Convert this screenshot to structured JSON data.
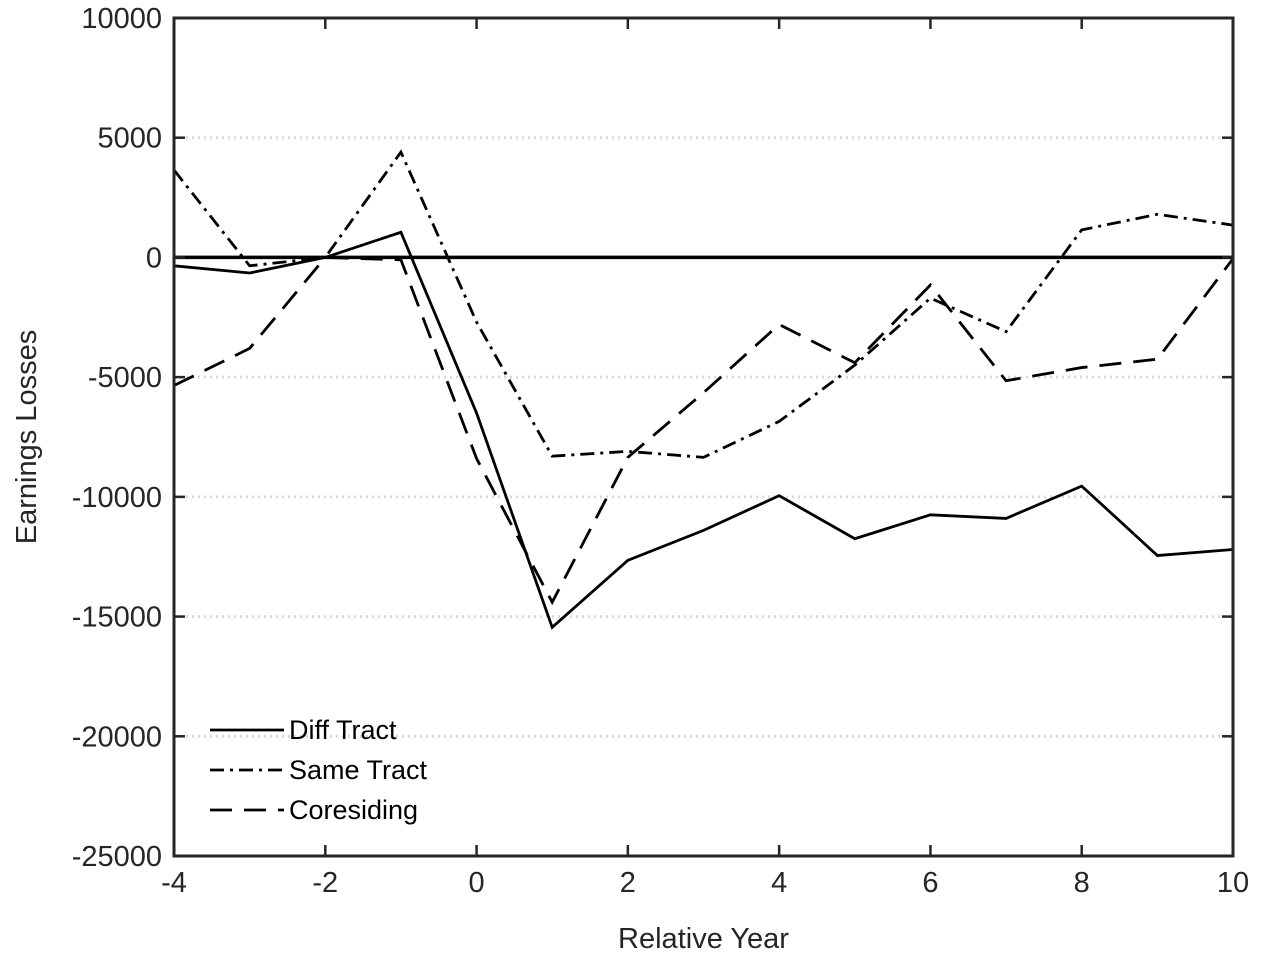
{
  "chart_data": {
    "type": "line",
    "xlabel": "Relative Year",
    "ylabel": "Earnings Losses",
    "xlim": [
      -4,
      10
    ],
    "ylim": [
      -25000,
      10000
    ],
    "xticks": [
      "-4",
      "-2",
      "0",
      "2",
      "4",
      "6",
      "8",
      "10"
    ],
    "yticks": [
      "10000",
      "5000",
      "0",
      "-5000",
      "-10000",
      "-15000",
      "-20000",
      "-25000"
    ],
    "grid": "horizontal dotted",
    "legend_position": "bottom-left",
    "x": [
      -4,
      -3,
      -2,
      -1,
      0,
      1,
      2,
      3,
      4,
      5,
      6,
      7,
      8,
      9,
      10
    ],
    "series": [
      {
        "name": "Diff Tract",
        "style": "solid",
        "values": [
          -350,
          -650,
          0,
          1050,
          -6500,
          -15450,
          -12650,
          -11400,
          -9950,
          -11750,
          -10750,
          -10900,
          -9550,
          -12450,
          -12200
        ]
      },
      {
        "name": "Same Tract",
        "style": "dashdot",
        "values": [
          3650,
          -350,
          0,
          4400,
          -2700,
          -8300,
          -8100,
          -8350,
          -6850,
          -4500,
          -1700,
          -3100,
          1150,
          1800,
          1350
        ]
      },
      {
        "name": "Coresiding",
        "style": "dashed",
        "values": [
          -5350,
          -3800,
          0,
          -100,
          -8400,
          -14400,
          -8350,
          -5650,
          -2800,
          -4400,
          -1150,
          -5150,
          -4600,
          -4250,
          -50
        ]
      }
    ],
    "zero_line": 0,
    "colors": {
      "lines": "#000000",
      "grid": "#d9d9d9",
      "text": "#262626"
    }
  }
}
